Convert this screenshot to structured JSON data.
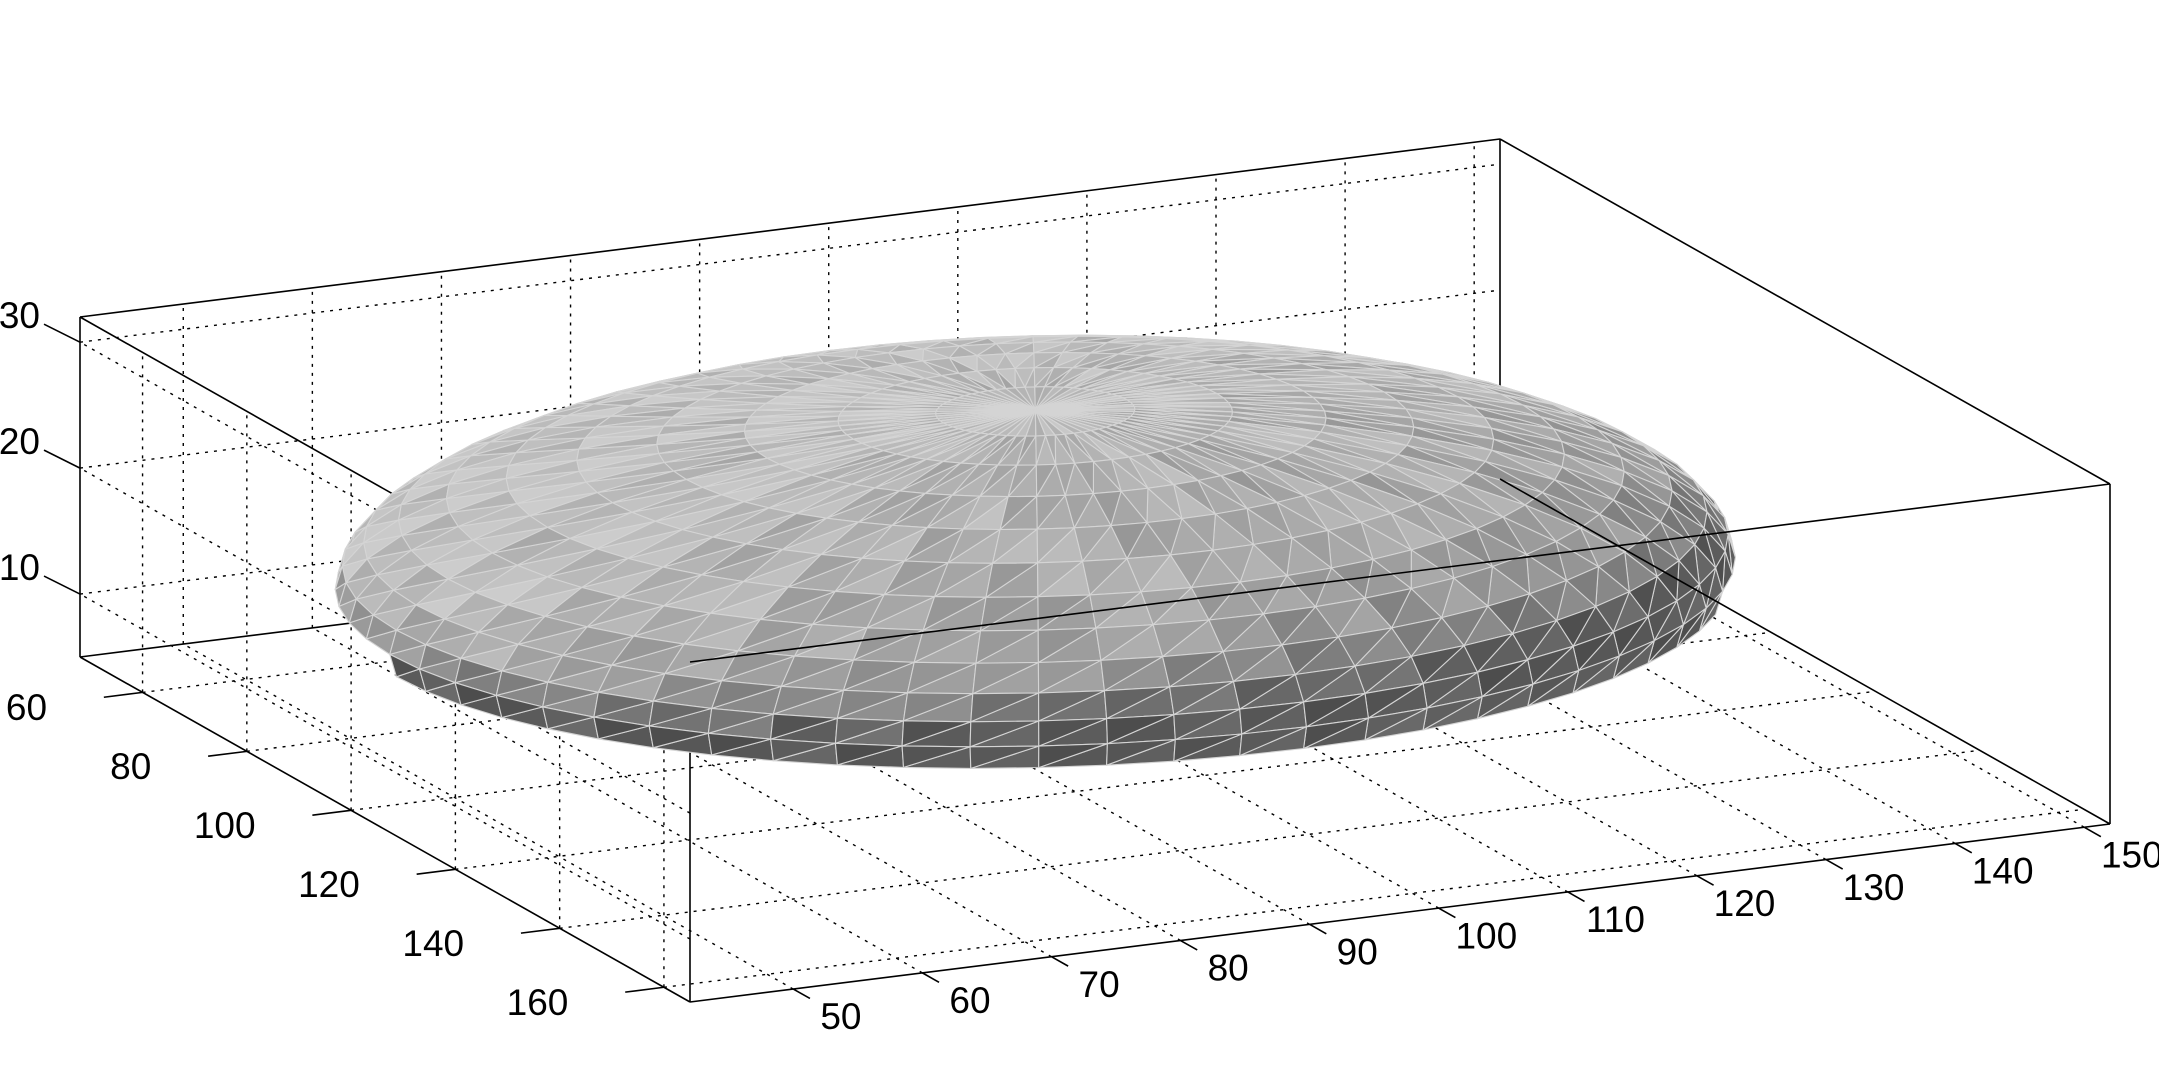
{
  "chart_data": {
    "type": "surface-mesh",
    "title": "",
    "xlabel": "",
    "ylabel": "",
    "zlabel": "",
    "grid": true,
    "colormap": "gray",
    "x_axis": {
      "ticks": [
        50,
        60,
        70,
        80,
        90,
        100,
        110,
        120,
        130,
        140,
        150
      ],
      "range": [
        42,
        152
      ]
    },
    "y_axis": {
      "ticks": [
        60,
        80,
        100,
        120,
        140,
        160
      ],
      "range": [
        48,
        165
      ]
    },
    "z_axis": {
      "ticks": [
        10,
        20,
        30
      ],
      "range": [
        5,
        32
      ]
    },
    "object": {
      "shape": "flattened ellipsoid (oblate) triangulated surface",
      "center": {
        "x": 95,
        "y": 100,
        "z": 17
      },
      "semi_axes": {
        "x": 50,
        "y": 52,
        "z": 13
      }
    }
  }
}
